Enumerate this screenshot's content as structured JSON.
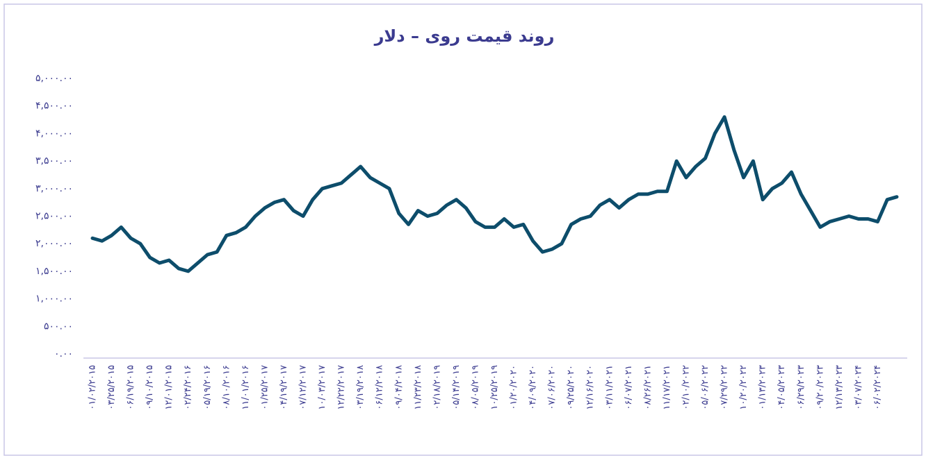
{
  "chart_data": {
    "type": "line",
    "title": "روند قیمت روی – دلار",
    "categories": [
      "۰۱/۰۲/۲۰۱۵",
      null,
      "۰۳/۲۵/۲۰۱۵",
      null,
      "۰۶/۱۹/۲۰۱۵",
      null,
      "۰۹/۱۰/۲۰۱۵",
      null,
      "۱۲/۰۱/۲۰۱۵",
      null,
      "۰۲/۲۴/۲۰۱۶",
      null,
      "۰۵/۱۹/۲۰۱۶",
      null,
      "۰۸/۱۰/۲۰۱۶",
      null,
      "۱۱/۰۱/۲۰۱۶",
      null,
      "۰۱/۲۵/۲۰۱۷",
      null,
      "۰۴/۱۹/۲۰۱۷",
      null,
      "۰۷/۱۲/۲۰۱۷",
      null,
      "۱۰/۰۳/۲۰۱۷",
      null,
      "۱۲/۲۲/۲۰۱۷",
      null,
      "۰۳/۱۹/۲۰۱۸",
      null,
      "۰۶/۱۲/۲۰۱۸",
      null,
      "۰۹/۰۴/۲۰۱۸",
      null,
      "۱۱/۲۳/۲۰۱۸",
      null,
      "۰۲/۱۸/۲۰۱۹",
      null,
      "۰۵/۱۴/۲۰۱۹",
      null,
      "۰۸/۰۵/۲۰۱۹",
      null,
      "۱۰/۲۵/۲۰۱۹",
      null,
      "۰۱/۲۰/۲۰۲۰",
      null,
      "۰۴/۰۹/۲۰۲۰",
      null,
      "۰۷/۰۶/۲۰۲۰",
      null,
      "۰۹/۲۵/۲۰۲۰",
      null,
      "۱۲/۱۶/۲۰۲۰",
      null,
      "۰۳/۱۱/۲۰۲۱",
      null,
      "۰۶/۰۷/۲۰۲۱",
      null,
      "۰۸/۲۶/۲۰۲۱",
      null,
      "۱۱/۱۷/۲۰۲۱",
      null,
      "۰۲/۱۰/۲۰۲۲",
      null,
      "۰۵/۰۶/۲۰۲۲",
      null,
      "۰۷/۲۹/۲۰۲۲",
      null,
      "۱۰/۲۰/۲۰۲۲",
      null,
      "۰۱/۱۳/۲۰۲۳",
      null,
      "۰۴/۰۵/۲۰۲۳",
      null,
      "۰۶/۲۹/۲۰۲۳",
      null,
      "۰۹/۲۰/۲۰۲۳",
      null,
      "۱۲/۱۳/۲۰۲۳",
      null,
      "۰۳/۰۷/۲۰۲۴",
      null,
      "۰۶/۰۲/۲۰۲۴",
      null,
      null
    ],
    "values": [
      2100,
      2050,
      2150,
      2300,
      2100,
      2000,
      1750,
      1650,
      1700,
      1550,
      1500,
      1650,
      1800,
      1850,
      2150,
      2200,
      2300,
      2500,
      2650,
      2750,
      2800,
      2600,
      2500,
      2800,
      3000,
      3050,
      3100,
      3250,
      3400,
      3200,
      3100,
      3000,
      2550,
      2350,
      2600,
      2500,
      2550,
      2700,
      2800,
      2650,
      2400,
      2300,
      2300,
      2450,
      2300,
      2350,
      2050,
      1850,
      1900,
      2000,
      2350,
      2450,
      2500,
      2700,
      2800,
      2650,
      2800,
      2900,
      2900,
      2950,
      2950,
      3500,
      3200,
      3400,
      3550,
      4000,
      4300,
      3700,
      3200,
      3500,
      2800,
      3000,
      3100,
      3300,
      2900,
      2600,
      2300,
      2400,
      2450,
      2500,
      2450,
      2450,
      2400,
      2800,
      2850
    ],
    "color": "#0d4d6b",
    "ylim": [
      0,
      5000
    ],
    "yticks": [
      {
        "value": 0,
        "label": "۰.۰۰"
      },
      {
        "value": 500,
        "label": "۵۰۰.۰۰"
      },
      {
        "value": 1000,
        "label": "۱,۰۰۰.۰۰"
      },
      {
        "value": 1500,
        "label": "۱,۵۰۰.۰۰"
      },
      {
        "value": 2000,
        "label": "۲,۰۰۰.۰۰"
      },
      {
        "value": 2500,
        "label": "۲,۵۰۰.۰۰"
      },
      {
        "value": 3000,
        "label": "۳,۰۰۰.۰۰"
      },
      {
        "value": 3500,
        "label": "۳,۵۰۰.۰۰"
      },
      {
        "value": 4000,
        "label": "۴,۰۰۰.۰۰"
      },
      {
        "value": 4500,
        "label": "۴,۵۰۰.۰۰"
      },
      {
        "value": 5000,
        "label": "۵,۰۰۰.۰۰"
      }
    ],
    "grid": false
  }
}
